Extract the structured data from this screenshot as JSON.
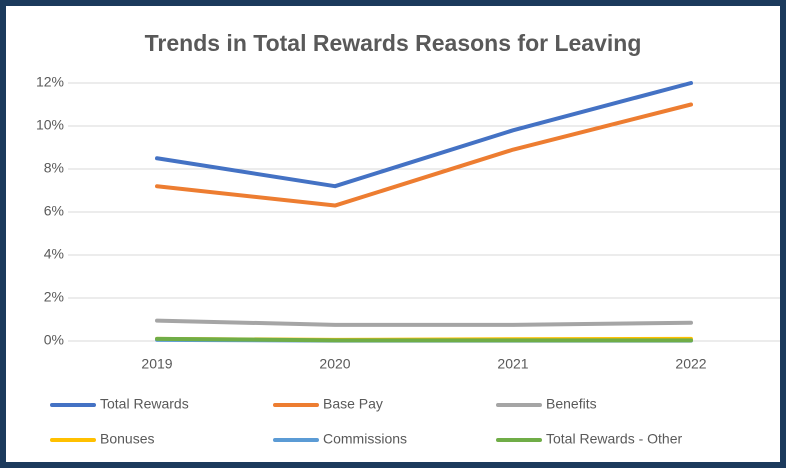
{
  "chart_data": {
    "type": "line",
    "title": "Trends in Total Rewards Reasons for Leaving",
    "categories": [
      "2019",
      "2020",
      "2021",
      "2022"
    ],
    "series": [
      {
        "name": "Total Rewards",
        "color": "#4472c4",
        "values": [
          8.5,
          7.2,
          9.8,
          12.0
        ]
      },
      {
        "name": "Base Pay",
        "color": "#ed7d31",
        "values": [
          7.2,
          6.3,
          8.9,
          11.0
        ]
      },
      {
        "name": "Benefits",
        "color": "#a5a5a5",
        "values": [
          0.95,
          0.75,
          0.75,
          0.85
        ]
      },
      {
        "name": "Bonuses",
        "color": "#ffc000",
        "values": [
          0.1,
          0.05,
          0.08,
          0.1
        ]
      },
      {
        "name": "Commissions",
        "color": "#5b9bd5",
        "values": [
          0.05,
          0.02,
          0.02,
          0.02
        ]
      },
      {
        "name": "Total Rewards - Other",
        "color": "#70ad47",
        "values": [
          0.1,
          0.03,
          0.03,
          0.03
        ]
      }
    ],
    "ylim": [
      0,
      12
    ],
    "yticks": [
      {
        "value": 0,
        "label": "0%"
      },
      {
        "value": 2,
        "label": "2%"
      },
      {
        "value": 4,
        "label": "4%"
      },
      {
        "value": 6,
        "label": "6%"
      },
      {
        "value": 8,
        "label": "8%"
      },
      {
        "value": 10,
        "label": "10%"
      },
      {
        "value": 12,
        "label": "12%"
      }
    ],
    "grid": true,
    "legend": "bottom"
  }
}
